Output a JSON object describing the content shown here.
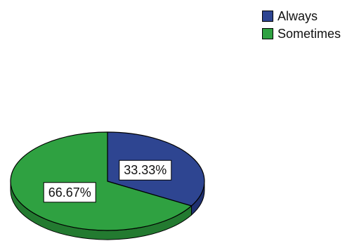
{
  "chart_data": {
    "type": "pie",
    "categories": [
      "Always",
      "Sometimes"
    ],
    "values": [
      33.33,
      66.67
    ],
    "data_labels": [
      "33.33%",
      "66.67%"
    ],
    "colors": [
      "#2e4591",
      "#2fa141"
    ],
    "side_colors": [
      "#1f3070",
      "#237a30"
    ],
    "style": "3d",
    "legend": {
      "placement": "top-right",
      "entries": [
        "Always",
        "Sometimes"
      ]
    },
    "title": ""
  }
}
